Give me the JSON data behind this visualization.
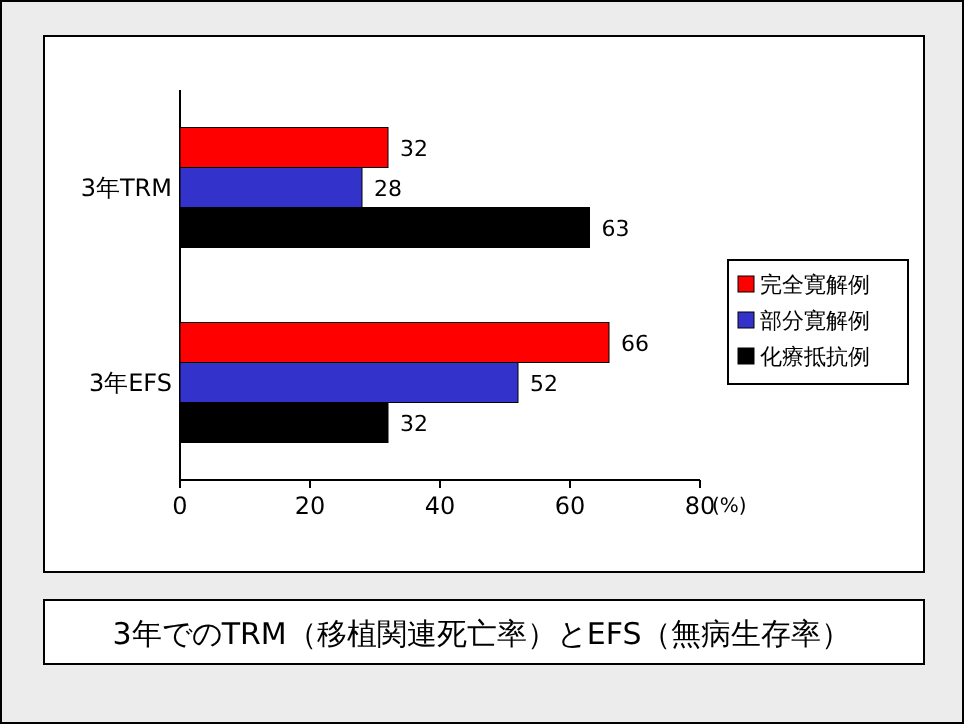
{
  "chart_data": {
    "type": "bar",
    "orientation": "horizontal",
    "categories": [
      "3年TRM",
      "3年EFS"
    ],
    "series": [
      {
        "name": "完全寛解例",
        "color": "#ff0000",
        "values": [
          32,
          66
        ]
      },
      {
        "name": "部分寛解例",
        "color": "#3333cc",
        "values": [
          28,
          52
        ]
      },
      {
        "name": "化療抵抗例",
        "color": "#000000",
        "values": [
          63,
          32
        ]
      }
    ],
    "xlim": [
      0,
      80
    ],
    "xticks": [
      0,
      20,
      40,
      60,
      80
    ],
    "xlabel": "(%)",
    "data_labels": true,
    "legend": "right",
    "grid": false,
    "annotations": [
      "3年でのTRM（移植関連死亡率）とEFS（無病生存率）"
    ]
  }
}
